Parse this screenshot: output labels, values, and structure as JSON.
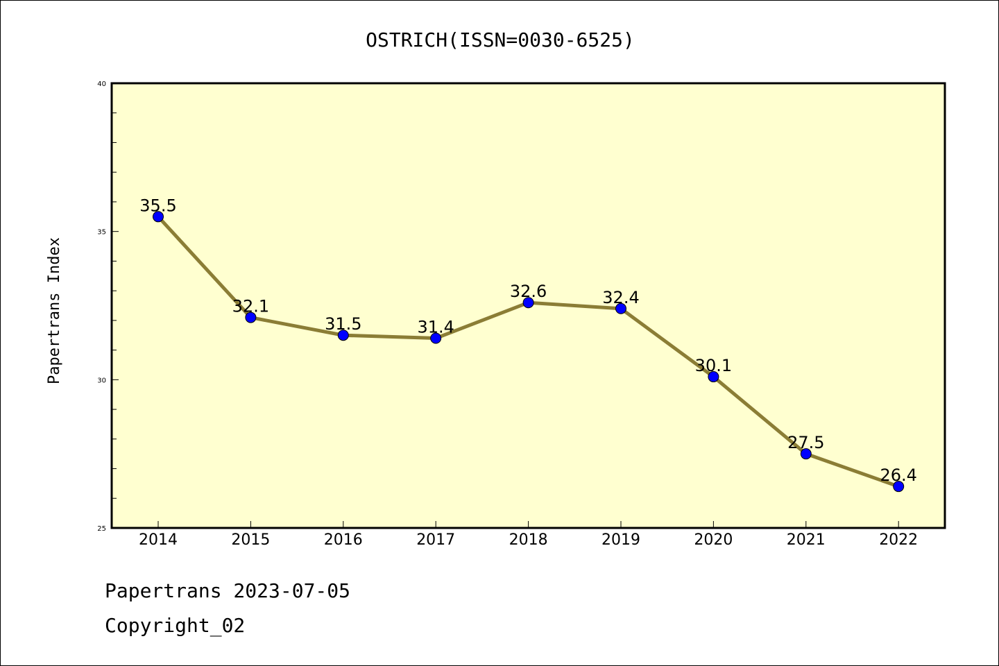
{
  "chart_data": {
    "type": "line",
    "title": "OSTRICH(ISSN=0030-6525)",
    "xlabel": "",
    "ylabel": "Papertrans Index",
    "categories": [
      "2014",
      "2015",
      "2016",
      "2017",
      "2018",
      "2019",
      "2020",
      "2021",
      "2022"
    ],
    "series": [
      {
        "values": [
          35.5,
          32.1,
          31.5,
          31.4,
          32.6,
          32.4,
          30.1,
          27.5,
          26.4
        ],
        "labels": [
          "35.5",
          "32.1",
          "31.5",
          "31.4",
          "32.6",
          "32.4",
          "30.1",
          "27.5",
          "26.4"
        ]
      }
    ],
    "ylim": [
      25,
      40
    ],
    "yticks": [
      "25",
      "30",
      "35",
      "40"
    ],
    "grid": false,
    "colors": {
      "line": "#8B7D35",
      "marker": "#0000FF",
      "plot_background": "#FFFFD0"
    }
  },
  "footer": {
    "line1": "Papertrans 2023-07-05",
    "line2": "Copyright_02"
  }
}
